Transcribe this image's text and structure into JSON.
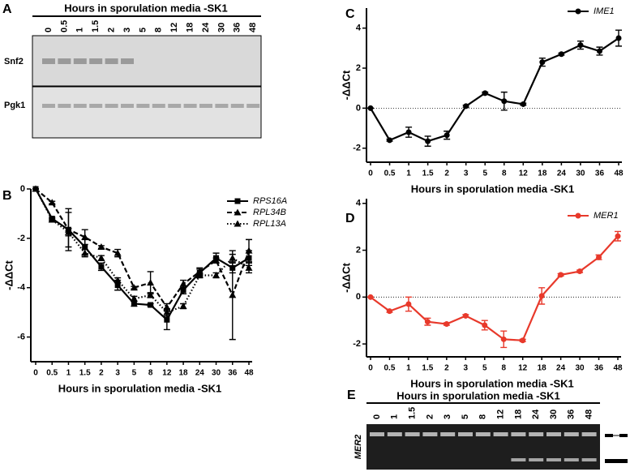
{
  "blots": [
    {
      "label": "A",
      "title": "Hours in sporulation media -SK1",
      "lanes": [
        "0",
        "0.5",
        "1",
        "1.5",
        "2",
        "3",
        "5",
        "8",
        "12",
        "18",
        "24",
        "30",
        "36",
        "48"
      ],
      "rows": [
        "Snf2",
        "Pgk1"
      ]
    },
    {
      "label": "E",
      "title": "Hours in sporulation media -SK1",
      "lanes": [
        "0",
        "1",
        "1.5",
        "2",
        "3",
        "5",
        "8",
        "12",
        "18",
        "24",
        "30",
        "36",
        "48"
      ],
      "row": "MER2"
    }
  ],
  "chart_data": [
    {
      "type": "line",
      "label": "B",
      "x_label": "Hours in sporulation media -SK1",
      "y_label": "-ΔΔCt",
      "categories": [
        "0",
        "0.5",
        "1",
        "1.5",
        "2",
        "3",
        "5",
        "8",
        "12",
        "18",
        "24",
        "30",
        "36",
        "48"
      ],
      "ylim": [
        -7,
        0
      ],
      "yticks": [
        0,
        -2,
        -4,
        -6
      ],
      "legend": "upper-right",
      "series": [
        {
          "name": "RPS16A",
          "color": "#000000",
          "dash": "solid",
          "marker": "square",
          "values": [
            0,
            -1.2,
            -1.65,
            -2.35,
            -3.15,
            -3.9,
            -4.65,
            -4.7,
            -5.3,
            -4.1,
            -3.4,
            -2.8,
            -3.2,
            -2.8
          ],
          "errors": [
            0,
            0.05,
            0.7,
            0.3,
            0.15,
            0.2,
            0.1,
            0.05,
            0.4,
            0.15,
            0.15,
            0.2,
            0.2,
            0.3
          ]
        },
        {
          "name": "RPL34B",
          "color": "#000000",
          "dash": "dashed",
          "marker": "triangle",
          "values": [
            0,
            -0.55,
            -1.65,
            -1.95,
            -2.35,
            -2.6,
            -4,
            -3.8,
            -4.8,
            -3.85,
            -3.35,
            -2.9,
            -4.3,
            -2.5
          ],
          "errors": [
            0,
            0.05,
            0.85,
            0.3,
            0.05,
            0.15,
            0.05,
            0.45,
            0.15,
            0.15,
            0.15,
            0.1,
            1.8,
            0.45
          ]
        },
        {
          "name": "RPL13A",
          "color": "#000000",
          "dash": "dotted",
          "marker": "triangle",
          "values": [
            0,
            -1.25,
            -1.75,
            -2.6,
            -2.8,
            -3.7,
            -4.45,
            -4.3,
            -5,
            -4.75,
            -3.5,
            -3.5,
            -2.8,
            -3.2
          ],
          "errors": [
            0,
            0.05,
            0.15,
            0.15,
            0.1,
            0.1,
            0.1,
            0.1,
            0.15,
            0.1,
            0.1,
            0.1,
            0.15,
            0.2
          ]
        }
      ]
    },
    {
      "type": "line",
      "label": "C",
      "x_label": "Hours in sporulation media -SK1",
      "y_label": "-ΔΔCt",
      "categories": [
        "0",
        "0.5",
        "1",
        "1.5",
        "2",
        "3",
        "5",
        "8",
        "12",
        "18",
        "24",
        "30",
        "36",
        "48"
      ],
      "ylim": [
        -2.7,
        5
      ],
      "yticks": [
        -2,
        0,
        2,
        4
      ],
      "zero_line": true,
      "legend": "upper-right",
      "series": [
        {
          "name": "IME1",
          "color": "#000000",
          "dash": "solid",
          "marker": "circle",
          "values": [
            0,
            -1.6,
            -1.2,
            -1.65,
            -1.35,
            0.1,
            0.75,
            0.35,
            0.2,
            2.3,
            2.7,
            3.15,
            2.85,
            3.5
          ],
          "errors": [
            0,
            0.05,
            0.25,
            0.25,
            0.2,
            0.05,
            0.05,
            0.45,
            0.05,
            0.2,
            0.05,
            0.2,
            0.2,
            0.4
          ]
        }
      ]
    },
    {
      "type": "line",
      "label": "D",
      "x_label": "Hours in sporulation media -SK1",
      "y_label": "-ΔΔCt",
      "categories": [
        "0",
        "0.5",
        "1",
        "1.5",
        "2",
        "3",
        "5",
        "8",
        "12",
        "18",
        "24",
        "30",
        "36",
        "48"
      ],
      "ylim": [
        -2.55,
        4.2
      ],
      "yticks": [
        -2,
        0,
        2,
        4
      ],
      "zero_line": true,
      "legend": "upper-right",
      "series": [
        {
          "name": "MER1",
          "color": "#e8392b",
          "dash": "solid",
          "marker": "circle",
          "values": [
            0,
            -0.6,
            -0.3,
            -1.05,
            -1.15,
            -0.8,
            -1.2,
            -1.8,
            -1.85,
            0.05,
            0.95,
            1.1,
            1.7,
            2.6
          ],
          "errors": [
            0,
            0.05,
            0.3,
            0.15,
            0.05,
            0.05,
            0.2,
            0.35,
            0.05,
            0.35,
            0.05,
            0.05,
            0.1,
            0.2
          ]
        }
      ]
    }
  ]
}
